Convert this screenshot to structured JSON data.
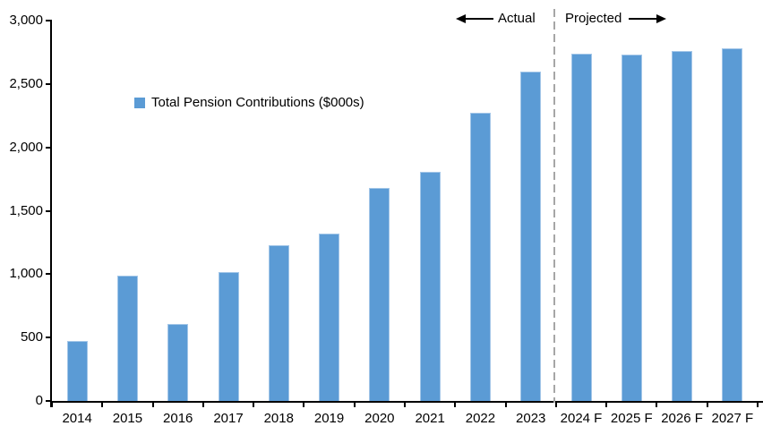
{
  "chart_data": {
    "type": "bar",
    "title": "",
    "legend": "Total Pension Contributions ($000s)",
    "categories": [
      "2014",
      "2015",
      "2016",
      "2017",
      "2018",
      "2019",
      "2020",
      "2021",
      "2022",
      "2023",
      "2024 F",
      "2025 F",
      "2026 F",
      "2027 F"
    ],
    "values": [
      470,
      990,
      610,
      1020,
      1230,
      1320,
      1680,
      1810,
      2270,
      2600,
      2740,
      2730,
      2760,
      2780
    ],
    "xlabel": "",
    "ylabel": "",
    "ylim": [
      0,
      3000
    ],
    "ytick_step": 500,
    "ytick_labels": [
      "0",
      "500",
      "1,000",
      "1,500",
      "2,000",
      "2,500",
      "3,000"
    ],
    "grid": false,
    "legend_position": "inside-upper-left",
    "bar_color": "#5B9BD5",
    "bar_edge_color": "#A3C6E8",
    "axis_color": "#000000",
    "annotations": {
      "actual_label": "Actual",
      "projected_label": "Projected",
      "divider_after_category": "2023",
      "divider_color": "#A6A6A6"
    }
  }
}
